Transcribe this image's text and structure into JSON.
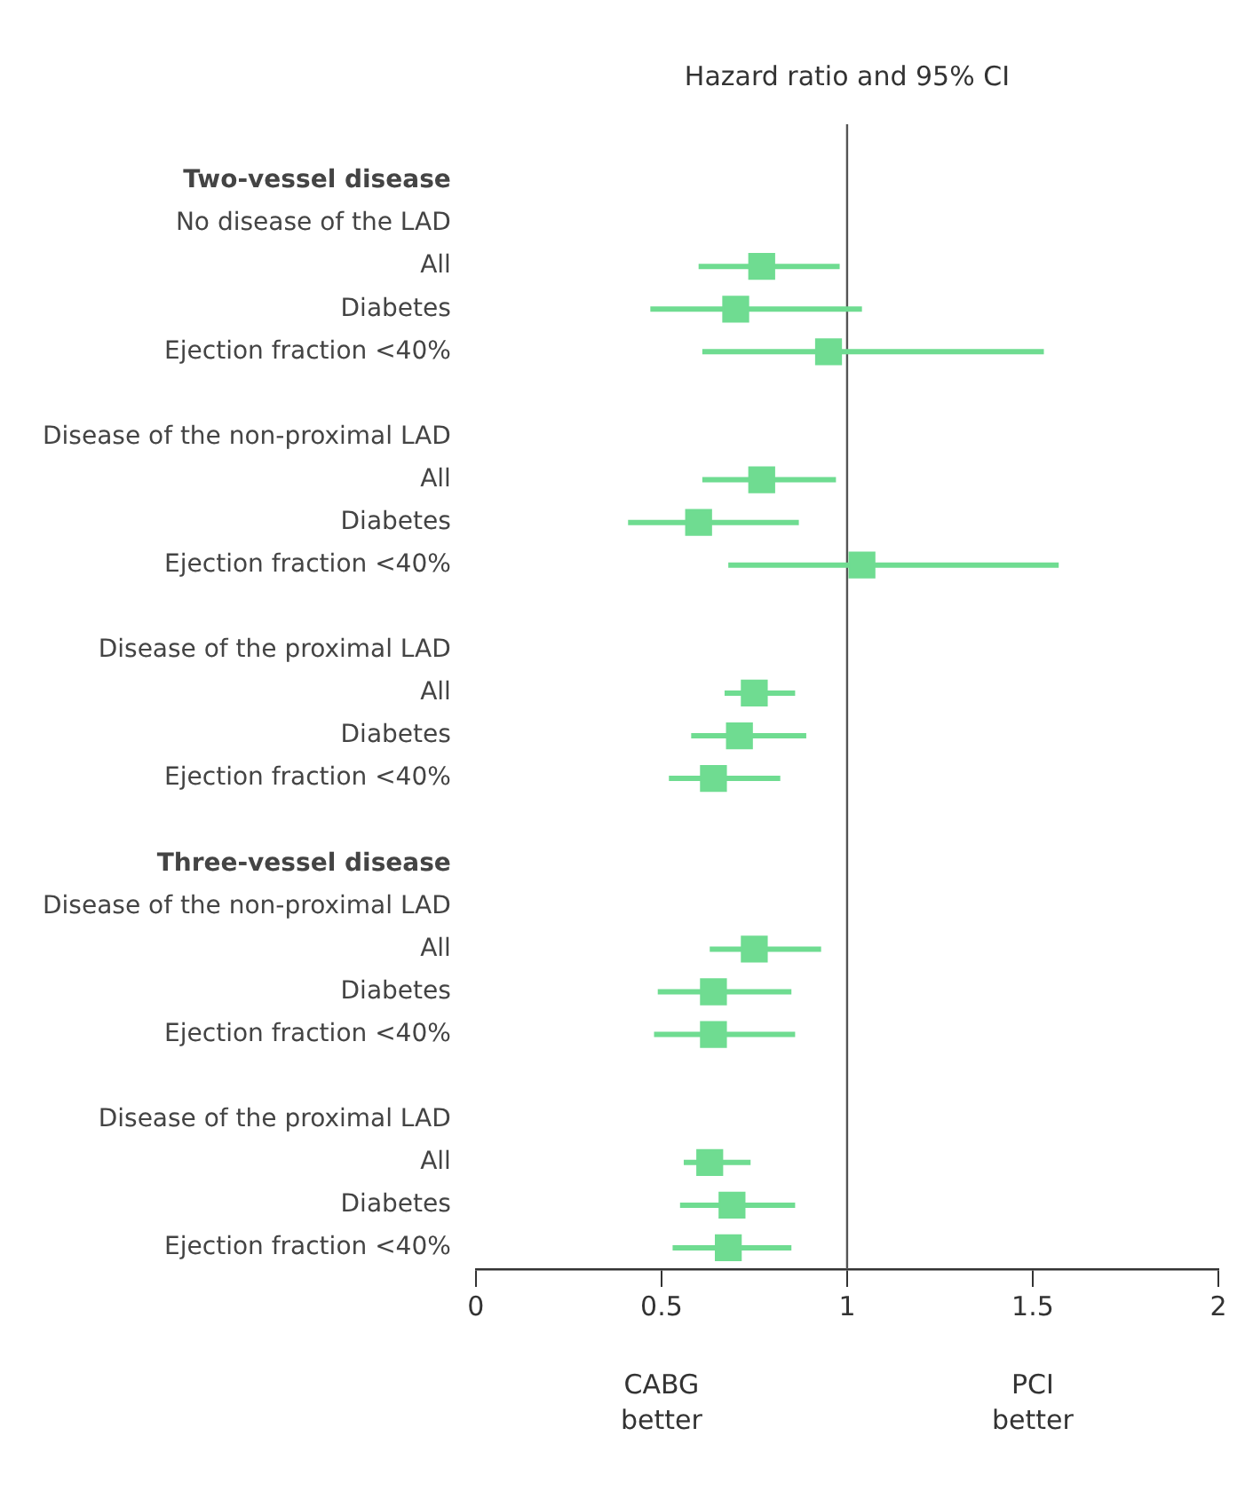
{
  "chart_data": {
    "type": "scatter",
    "orientation": "horizontal",
    "title": "Hazard ratio and 95% CI",
    "categories": [
      "Two-vessel disease",
      "No disease of the LAD",
      "All",
      "Diabetes",
      "Ejection fraction <40%",
      null,
      "Disease of the non-proximal LAD",
      "All",
      "Diabetes",
      "Ejection fraction <40%",
      null,
      "Disease of the proximal LAD",
      "All",
      "Diabetes",
      "Ejection fraction <40%",
      null,
      "Three-vessel disease",
      "Disease of the non-proximal LAD",
      "All",
      "Diabetes",
      "Ejection fraction <40%",
      null,
      "Disease of the proximal LAD",
      "All",
      "Diabetes",
      "Ejection fraction <40%"
    ],
    "series": [
      {
        "color": "#6fdc91",
        "values": [
          null,
          null,
          0.77,
          0.7,
          0.95,
          null,
          null,
          0.77,
          0.6,
          1.04,
          null,
          null,
          0.75,
          0.71,
          0.64,
          null,
          null,
          null,
          0.75,
          0.64,
          0.64,
          null,
          null,
          0.63,
          0.69,
          0.68
        ],
        "errors": [
          null,
          null,
          [
            0.6,
            0.98
          ],
          [
            0.47,
            1.04
          ],
          [
            0.61,
            1.53
          ],
          null,
          null,
          [
            0.61,
            0.97
          ],
          [
            0.41,
            0.87
          ],
          [
            0.68,
            1.57
          ],
          null,
          null,
          [
            0.67,
            0.86
          ],
          [
            0.58,
            0.89
          ],
          [
            0.52,
            0.82
          ],
          null,
          null,
          null,
          [
            0.63,
            0.93
          ],
          [
            0.49,
            0.85
          ],
          [
            0.48,
            0.86
          ],
          null,
          null,
          [
            0.56,
            0.74
          ],
          [
            0.55,
            0.86
          ],
          [
            0.53,
            0.85
          ]
        ]
      }
    ],
    "xlim": [
      0,
      2
    ],
    "xticks": [
      0,
      0.5,
      1,
      1.5,
      2
    ],
    "ref_lines": [
      {
        "axis": "x",
        "value": 1,
        "color": "#555555"
      }
    ],
    "annotations": [
      "CABG\nbetter",
      "PCI\nbetter"
    ],
    "marker": "square",
    "grid": false,
    "legend": false
  }
}
